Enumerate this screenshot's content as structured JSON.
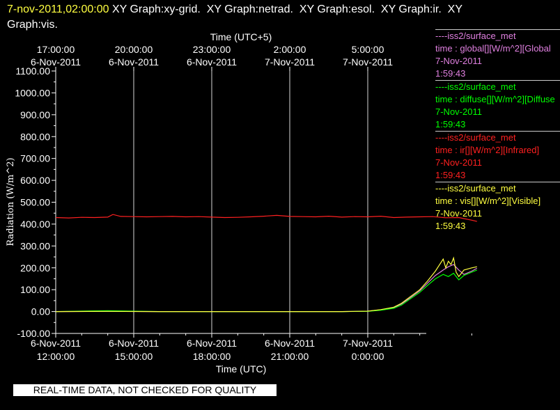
{
  "header": {
    "timestamp": "7-nov-2011,02:00:00",
    "graphs_line1": "XY Graph:xy-grid.  XY Graph:netrad.  XY Graph:esol.  XY Graph:ir.  XY",
    "graphs_line2": "Graph:vis."
  },
  "legend": [
    {
      "source": "----iss2/surface_met",
      "field": "time : global[][W/m^2][Global",
      "date": "7-Nov-2011",
      "time": "1:59:43",
      "color": "#e080e0"
    },
    {
      "source": "----iss2/surface_met",
      "field": "time : diffuse[][W/m^2][Diffuse",
      "date": "7-Nov-2011",
      "time": "1:59:43",
      "color": "#00ff00"
    },
    {
      "source": "----iss2/surface_met",
      "field": "time : ir[][W/m^2][Infrared]",
      "date": "7-Nov-2011",
      "time": "1:59:43",
      "color": "#ff2020"
    },
    {
      "source": "----iss2/surface_met",
      "field": "time : vis[][W/m^2][Visible]",
      "date": "7-Nov-2011",
      "time": "1:59:43",
      "color": "#ffff40"
    }
  ],
  "quality_note": "REAL-TIME DATA, NOT CHECKED FOR QUALITY",
  "chart_data": {
    "type": "line",
    "xlabel": "Time (UTC)",
    "x2label": "Time (UTC+5)",
    "ylabel": "Radiation (W/m^2)",
    "ylim": [
      -100,
      1100
    ],
    "xlim_hours": [
      0,
      16.2
    ],
    "yticks": [
      "1100.00",
      "1000.00",
      "900.00",
      "800.00",
      "700.00",
      "600.00",
      "500.00",
      "400.00",
      "300.00",
      "200.00",
      "100.00",
      "0.00",
      "-100.00"
    ],
    "xticks_bottom": [
      {
        "date": "6-Nov-2011",
        "time": "12:00:00"
      },
      {
        "date": "6-Nov-2011",
        "time": "15:00:00"
      },
      {
        "date": "6-Nov-2011",
        "time": "18:00:00"
      },
      {
        "date": "6-Nov-2011",
        "time": "21:00:00"
      },
      {
        "date": "7-Nov-2011",
        "time": "0:00:00"
      }
    ],
    "xticks_top": [
      {
        "time": "17:00:00",
        "date": "6-Nov-2011"
      },
      {
        "time": "20:00:00",
        "date": "6-Nov-2011"
      },
      {
        "time": "23:00:00",
        "date": "6-Nov-2011"
      },
      {
        "time": "2:00:00",
        "date": "7-Nov-2011"
      },
      {
        "time": "5:00:00",
        "date": "7-Nov-2011"
      }
    ],
    "grid": true,
    "series": [
      {
        "name": "ir",
        "color": "#ff2020",
        "x": [
          0,
          0.5,
          1,
          1.5,
          2,
          2.2,
          2.5,
          3,
          3.5,
          4,
          4.5,
          5,
          5.5,
          6,
          6.5,
          7,
          7.5,
          8,
          8.5,
          9,
          9.5,
          10,
          10.5,
          11,
          11.5,
          12,
          12.5,
          13,
          13.5,
          14,
          14.5,
          15,
          15.5,
          16,
          16.2
        ],
        "y": [
          430,
          428,
          431,
          430,
          432,
          444,
          435,
          434,
          433,
          434,
          435,
          433,
          434,
          432,
          430,
          431,
          433,
          436,
          440,
          435,
          434,
          433,
          436,
          432,
          434,
          433,
          436,
          430,
          432,
          433,
          434,
          429,
          430,
          418,
          412
        ]
      },
      {
        "name": "global",
        "color": "#e080e0",
        "x": [
          0,
          2,
          4,
          6,
          8,
          10,
          11,
          12,
          12.5,
          13,
          13.3,
          13.6,
          14,
          14.3,
          14.6,
          14.9,
          15.1,
          15.3,
          15.5,
          15.7,
          16,
          16.2
        ],
        "y": [
          0,
          1,
          0,
          0,
          0,
          0,
          0,
          2,
          8,
          18,
          35,
          60,
          95,
          130,
          165,
          190,
          205,
          215,
          190,
          170,
          185,
          198
        ]
      },
      {
        "name": "diffuse",
        "color": "#00ff00",
        "x": [
          0,
          2,
          4,
          6,
          8,
          10,
          11,
          12,
          12.5,
          13,
          13.3,
          13.6,
          14,
          14.3,
          14.6,
          14.9,
          15.1,
          15.3,
          15.5,
          15.7,
          16,
          16.2
        ],
        "y": [
          0,
          4,
          0,
          0,
          0,
          0,
          0,
          1,
          6,
          15,
          30,
          55,
          88,
          120,
          150,
          170,
          160,
          175,
          145,
          165,
          180,
          190
        ]
      },
      {
        "name": "vis",
        "color": "#ffff40",
        "x": [
          0,
          2,
          4,
          6,
          8,
          10,
          11,
          12,
          12.5,
          13,
          13.3,
          13.6,
          14,
          14.3,
          14.6,
          14.9,
          15.0,
          15.1,
          15.2,
          15.3,
          15.4,
          15.5,
          15.7,
          16,
          16.2
        ],
        "y": [
          0,
          1,
          0,
          0,
          0,
          0,
          0,
          2,
          9,
          20,
          38,
          65,
          100,
          140,
          185,
          240,
          200,
          230,
          215,
          245,
          180,
          160,
          190,
          200,
          205
        ]
      }
    ]
  }
}
